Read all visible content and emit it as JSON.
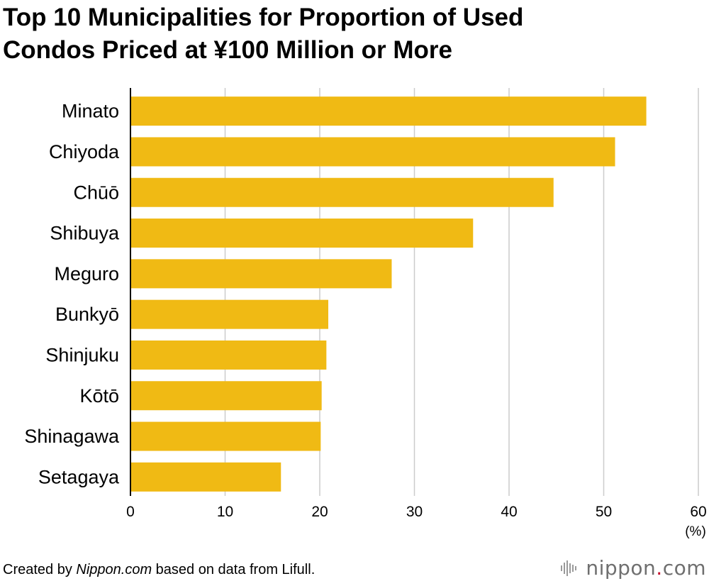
{
  "title_line1": "Top 10 Municipalities for Proportion of Used",
  "title_line2": "Condos Priced at ¥100 Million or More",
  "footer": {
    "prefix": "Created by ",
    "source_name": "Nippon.com",
    "suffix": " based on data from Lifull."
  },
  "brand": {
    "name": "nippon",
    "dot": ".",
    "tld": "com",
    "icon": "sound-wave-icon"
  },
  "colors": {
    "bar": "#F0BA14",
    "grid": "#cccccc",
    "axis": "#000000",
    "brand_dot": "#c8102e"
  },
  "chart_data": {
    "type": "bar",
    "orientation": "horizontal",
    "categories": [
      "Minato",
      "Chiyoda",
      "Chūō",
      "Shibuya",
      "Meguro",
      "Bunkyō",
      "Shinjuku",
      "Kōtō",
      "Shinagawa",
      "Setagaya"
    ],
    "values": [
      54.5,
      51.2,
      44.7,
      36.2,
      27.6,
      20.9,
      20.7,
      20.2,
      20.1,
      15.9
    ],
    "xlim": [
      0,
      60
    ],
    "xticks": [
      0,
      10,
      20,
      30,
      40,
      50,
      60
    ],
    "xunit": "(%)",
    "grid": true
  }
}
